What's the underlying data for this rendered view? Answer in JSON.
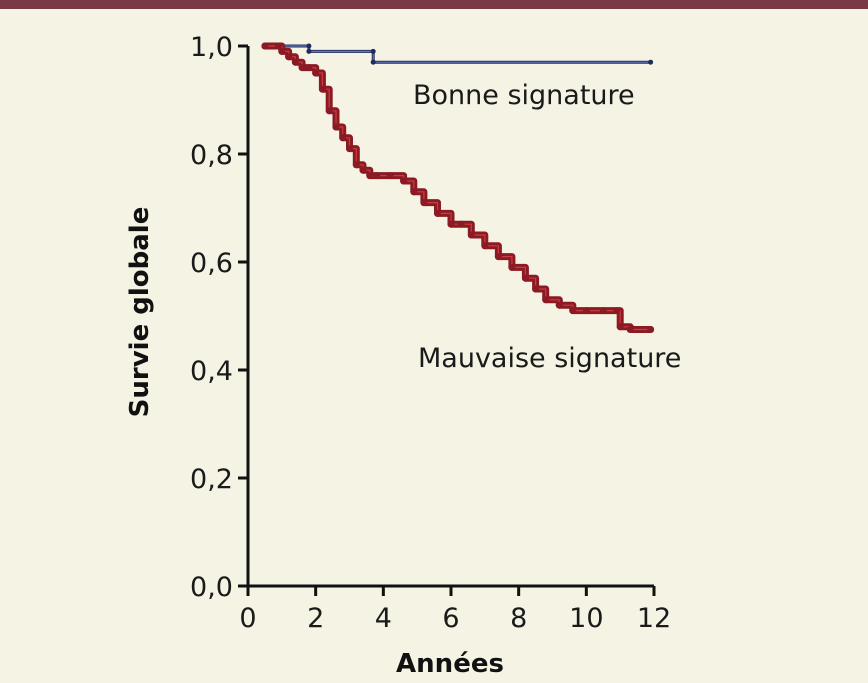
{
  "chart_data": {
    "type": "line",
    "xlabel": "Années",
    "ylabel": "Survie globale",
    "xlim": [
      0,
      12
    ],
    "ylim": [
      0.0,
      1.0
    ],
    "x_ticks": [
      "0",
      "2",
      "4",
      "6",
      "8",
      "10",
      "12"
    ],
    "y_ticks": [
      "0,0",
      "0,2",
      "0,4",
      "0,6",
      "0,8",
      "1,0"
    ],
    "grid": false,
    "colors": {
      "bonne": "#1f2a5e",
      "bonne_line": "#6a7ec2",
      "mauvaise": "#8c1a24",
      "mauvaise_line": "#d04040",
      "axis": "#111111",
      "band": "#7a3a45"
    },
    "series": [
      {
        "name": "Bonne signature",
        "x": [
          0.5,
          1.8,
          1.8,
          3.7,
          3.7,
          11.9
        ],
        "y": [
          1.0,
          1.0,
          0.99,
          0.99,
          0.97,
          0.97
        ]
      },
      {
        "name": "Mauvaise signature",
        "x": [
          0.5,
          0.9,
          1.0,
          1.2,
          1.4,
          1.6,
          1.8,
          2.0,
          2.2,
          2.4,
          2.6,
          2.8,
          3.0,
          3.2,
          3.4,
          3.6,
          3.8,
          4.2,
          4.6,
          4.9,
          5.2,
          5.6,
          6.0,
          6.3,
          6.6,
          7.0,
          7.4,
          7.8,
          8.2,
          8.5,
          8.8,
          9.2,
          9.6,
          10.0,
          10.5,
          10.9,
          11.0,
          11.3,
          11.9
        ],
        "y": [
          1.0,
          1.0,
          0.99,
          0.98,
          0.97,
          0.96,
          0.96,
          0.95,
          0.92,
          0.88,
          0.85,
          0.83,
          0.81,
          0.78,
          0.77,
          0.76,
          0.76,
          0.76,
          0.75,
          0.73,
          0.71,
          0.69,
          0.67,
          0.67,
          0.65,
          0.63,
          0.61,
          0.59,
          0.57,
          0.55,
          0.53,
          0.52,
          0.51,
          0.51,
          0.51,
          0.51,
          0.48,
          0.475,
          0.475
        ]
      }
    ]
  }
}
